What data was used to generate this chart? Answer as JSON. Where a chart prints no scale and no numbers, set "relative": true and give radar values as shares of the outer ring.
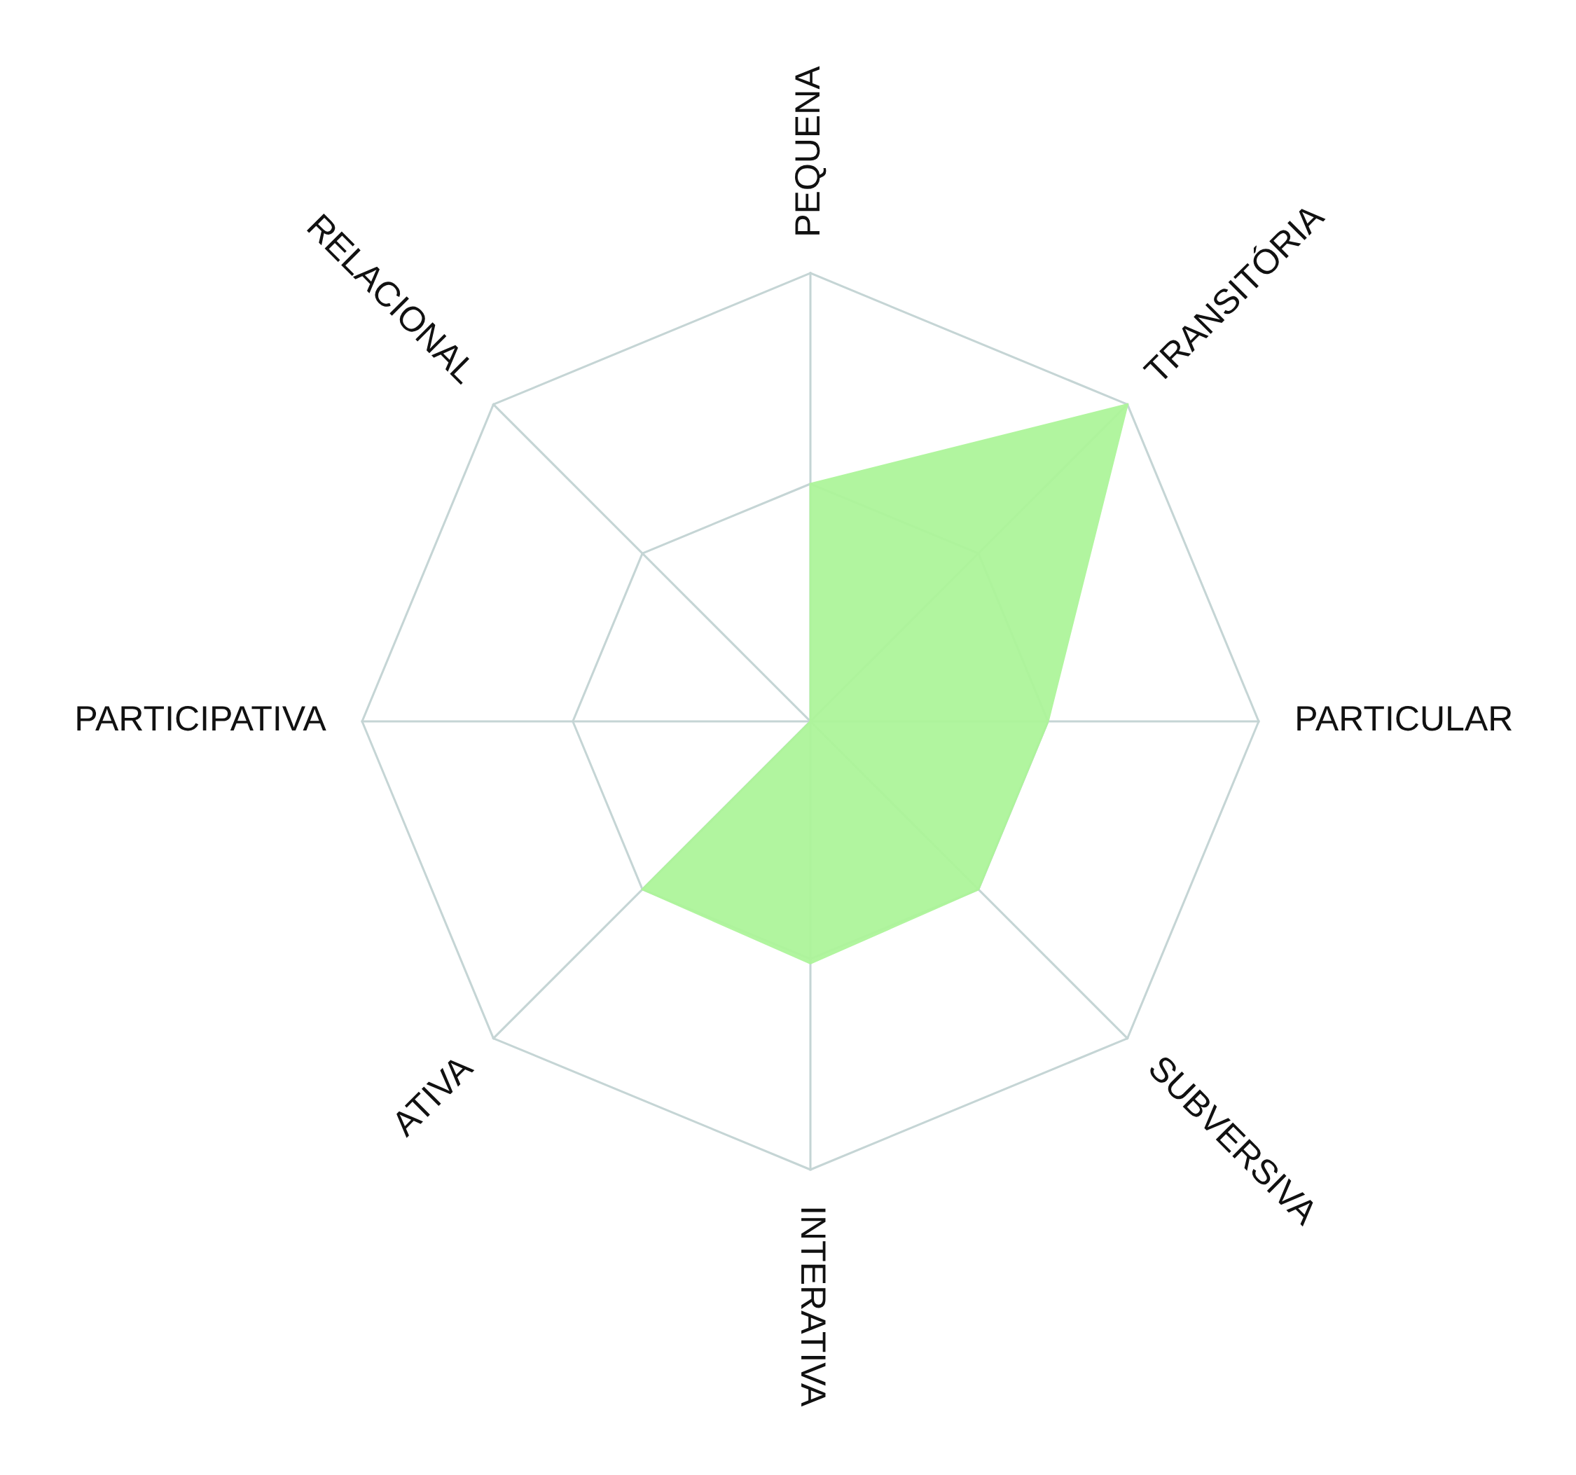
{
  "chart_data": {
    "type": "radar",
    "relative": true,
    "categories": [
      "PEQUENA",
      "TRANSITÓRIA",
      "PARTICULAR",
      "SUBVERSIVA",
      "INTERATIVA",
      "ATIVA",
      "PARTICIPATIVA",
      "RELACIONAL"
    ],
    "series": [
      {
        "color": "#adf59a",
        "values": [
          0.53,
          1,
          0.53,
          0.53,
          0.54,
          0.53,
          0,
          0
        ]
      }
    ],
    "grid": true
  }
}
